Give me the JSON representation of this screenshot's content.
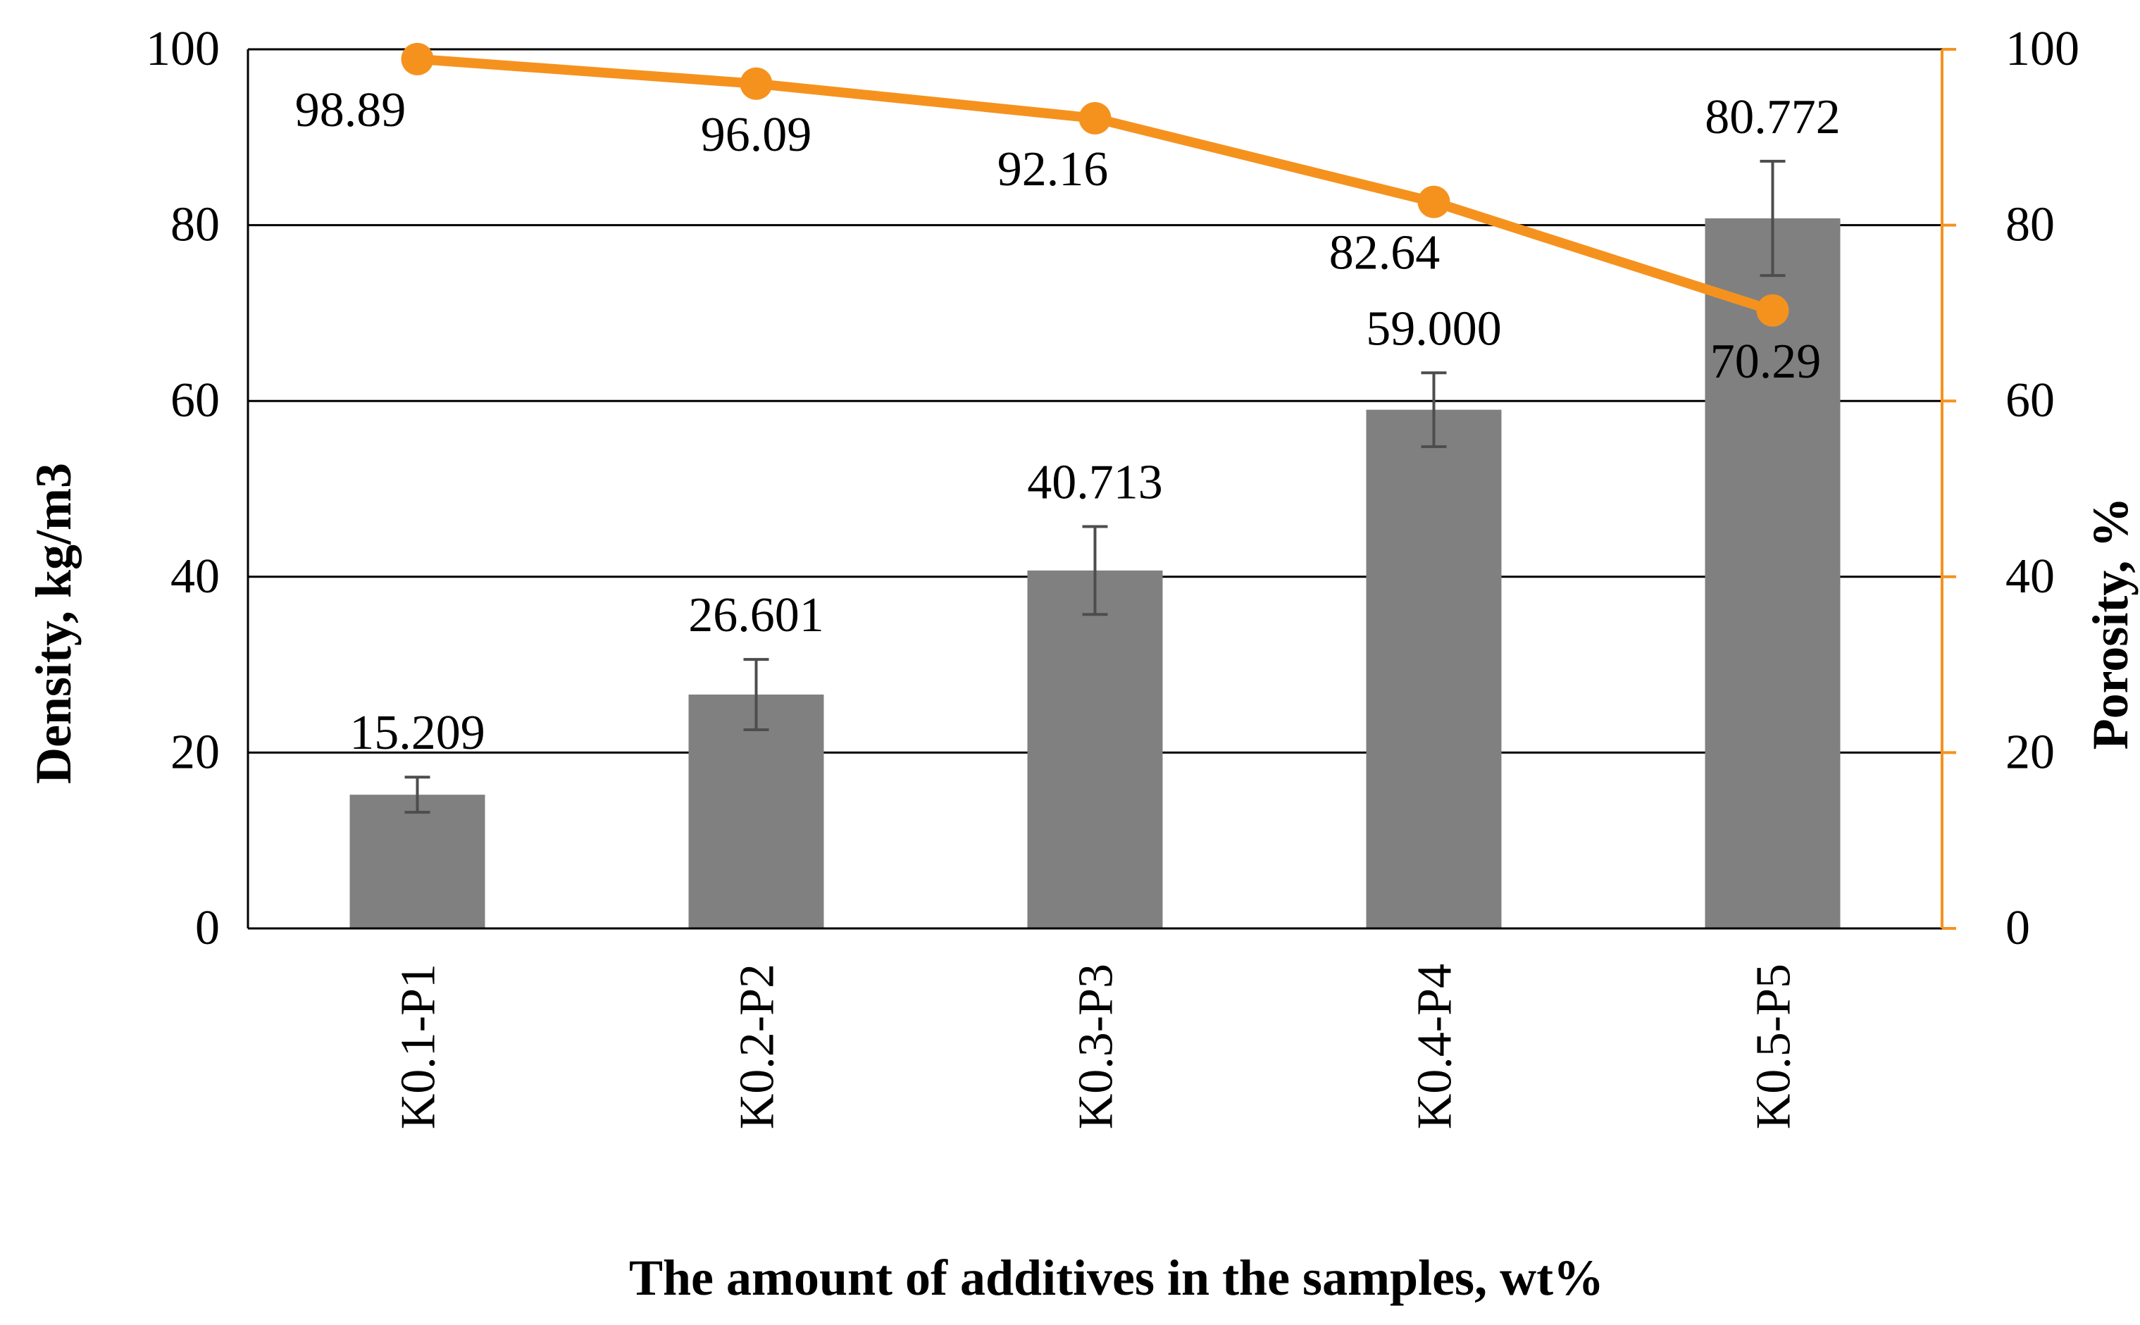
{
  "chart_data": {
    "type": "bar",
    "categories": [
      "K0.1-P1",
      "K0.2-P2",
      "K0.3-P3",
      "K0.4-P4",
      "K0.5-P5"
    ],
    "series": [
      {
        "name": "Density",
        "type": "bar",
        "axis": "left",
        "values": [
          15.209,
          26.601,
          40.713,
          59.0,
          80.772
        ],
        "labels": [
          "15.209",
          "26.601",
          "40.713",
          "59.000",
          "80.772"
        ],
        "error": [
          2.0,
          4.0,
          5.0,
          4.2,
          6.5
        ],
        "color": "#808080"
      },
      {
        "name": "Porosity",
        "type": "line",
        "axis": "right",
        "values": [
          98.89,
          96.09,
          92.16,
          82.64,
          70.29
        ],
        "labels": [
          "98.89",
          "96.09",
          "92.16",
          "82.64",
          "70.29"
        ],
        "color": "#F5921E"
      }
    ],
    "ylabel": "Density, kg/m3",
    "y2label": "Porosity, %",
    "xlabel": "The amount of additives in the samples, wt%",
    "ylim": [
      0,
      100
    ],
    "y2lim": [
      0,
      100
    ],
    "yticks": [
      "0",
      "20",
      "40",
      "60",
      "80",
      "100"
    ],
    "y2ticks": [
      "0",
      "20",
      "40",
      "60",
      "80",
      "100"
    ],
    "grid": true
  }
}
